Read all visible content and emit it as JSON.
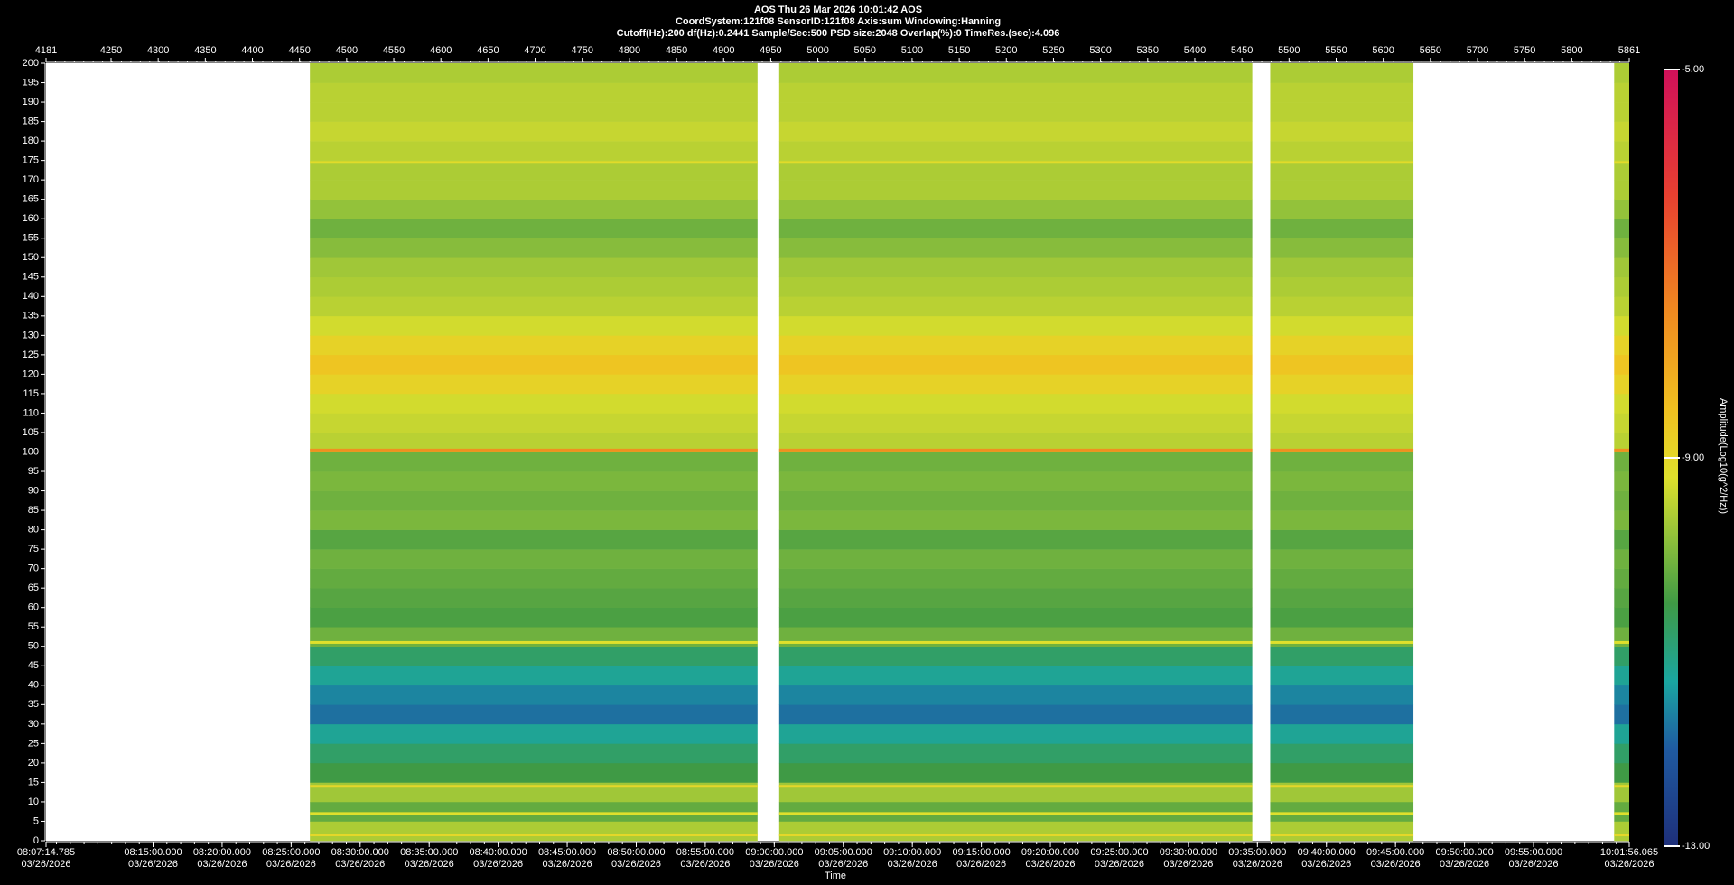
{
  "chart_data": {
    "type": "spectrogram",
    "title": "AOS  Thu 26 Mar 2026 10:01:42  AOS",
    "subtitle": "CoordSystem:121f08    SensorID:121f08    Axis:sum    Windowing:Hanning",
    "params": "Cutoff(Hz):200     df(Hz):0.2441     Sample/Sec:500     PSD size:2048     Overlap(%):0     TimeRes.(sec):4.096",
    "x2label": "Time",
    "colorbar_label": "Amplitude(Log10(g^2/Hz))",
    "xlim": [
      4181,
      5861
    ],
    "xticks": [
      4181,
      4250,
      4300,
      4350,
      4400,
      4450,
      4500,
      4550,
      4600,
      4650,
      4700,
      4750,
      4800,
      4850,
      4900,
      4950,
      5000,
      5050,
      5100,
      5150,
      5200,
      5250,
      5300,
      5350,
      5400,
      5450,
      5500,
      5550,
      5600,
      5650,
      5700,
      5750,
      5800,
      5861
    ],
    "x2ticks": [
      {
        "time": "08:07:14.785",
        "date": "03/26/2026"
      },
      {
        "time": "08:15:00.000",
        "date": "03/26/2026"
      },
      {
        "time": "08:20:00.000",
        "date": "03/26/2026"
      },
      {
        "time": "08:25:00.000",
        "date": "03/26/2026"
      },
      {
        "time": "08:30:00.000",
        "date": "03/26/2026"
      },
      {
        "time": "08:35:00.000",
        "date": "03/26/2026"
      },
      {
        "time": "08:40:00.000",
        "date": "03/26/2026"
      },
      {
        "time": "08:45:00.000",
        "date": "03/26/2026"
      },
      {
        "time": "08:50:00.000",
        "date": "03/26/2026"
      },
      {
        "time": "08:55:00.000",
        "date": "03/26/2026"
      },
      {
        "time": "09:00:00.000",
        "date": "03/26/2026"
      },
      {
        "time": "09:05:00.000",
        "date": "03/26/2026"
      },
      {
        "time": "09:10:00.000",
        "date": "03/26/2026"
      },
      {
        "time": "09:15:00.000",
        "date": "03/26/2026"
      },
      {
        "time": "09:20:00.000",
        "date": "03/26/2026"
      },
      {
        "time": "09:25:00.000",
        "date": "03/26/2026"
      },
      {
        "time": "09:30:00.000",
        "date": "03/26/2026"
      },
      {
        "time": "09:35:00.000",
        "date": "03/26/2026"
      },
      {
        "time": "09:40:00.000",
        "date": "03/26/2026"
      },
      {
        "time": "09:45:00.000",
        "date": "03/26/2026"
      },
      {
        "time": "09:50:00.000",
        "date": "03/26/2026"
      },
      {
        "time": "09:55:00.000",
        "date": "03/26/2026"
      },
      {
        "time": "10:01:56.065",
        "date": "03/26/2026"
      }
    ],
    "ylim": [
      0,
      200
    ],
    "yticks": [
      0,
      5,
      10,
      15,
      20,
      25,
      30,
      35,
      40,
      45,
      50,
      55,
      60,
      65,
      70,
      75,
      80,
      85,
      90,
      95,
      100,
      105,
      110,
      115,
      120,
      125,
      130,
      135,
      140,
      145,
      150,
      155,
      160,
      165,
      170,
      175,
      180,
      185,
      190,
      195,
      200
    ],
    "zlim": [
      -13,
      -5
    ],
    "zticks": [
      {
        "value": -5,
        "label": "-5.00"
      },
      {
        "value": -9,
        "label": "-9.00"
      },
      {
        "value": -13,
        "label": "-13.00"
      }
    ],
    "colorscale": [
      [
        -13,
        "#1e2f7a"
      ],
      [
        -12,
        "#1f5aa0"
      ],
      [
        -11.3,
        "#1aa6a0"
      ],
      [
        -10.5,
        "#3f9a45"
      ],
      [
        -9.8,
        "#93c23a"
      ],
      [
        -9.2,
        "#dfe02c"
      ],
      [
        -8.5,
        "#f0c020"
      ],
      [
        -7.5,
        "#f08a20"
      ],
      [
        -6.3,
        "#e84030"
      ],
      [
        -5,
        "#d0105a"
      ]
    ],
    "segments": [
      [
        4461,
        4936
      ],
      [
        4959,
        5461
      ],
      [
        5480,
        5632
      ],
      [
        5845,
        5861
      ]
    ],
    "band_edges": [
      0,
      5,
      10,
      15,
      20,
      25,
      30,
      35,
      40,
      45,
      50,
      55,
      60,
      65,
      70,
      75,
      80,
      85,
      90,
      95,
      100,
      105,
      110,
      115,
      120,
      125,
      130,
      135,
      140,
      145,
      150,
      155,
      160,
      165,
      170,
      175,
      180,
      185,
      190,
      195,
      200
    ],
    "amplitudes": [
      -9.6,
      -10.2,
      -9.7,
      -10.5,
      -10.8,
      -11.2,
      -11.8,
      -11.6,
      -11.2,
      -10.8,
      -10.1,
      -10.4,
      -10.3,
      -10.2,
      -10.1,
      -10.3,
      -10.0,
      -10.1,
      -10.0,
      -10.1,
      -9.5,
      -9.4,
      -9.3,
      -8.9,
      -8.6,
      -8.9,
      -9.3,
      -9.5,
      -9.6,
      -9.7,
      -9.9,
      -10.1,
      -9.8,
      -9.6,
      -9.6,
      -9.5,
      -9.4,
      -9.5,
      -9.5,
      -9.6
    ],
    "tones": {
      "freq": [
        1.5,
        7,
        14,
        51,
        100.5,
        174.5
      ],
      "amplitude": [
        -9.0,
        -9.2,
        -9.0,
        -9.2,
        -7.6,
        -9.1
      ]
    }
  }
}
